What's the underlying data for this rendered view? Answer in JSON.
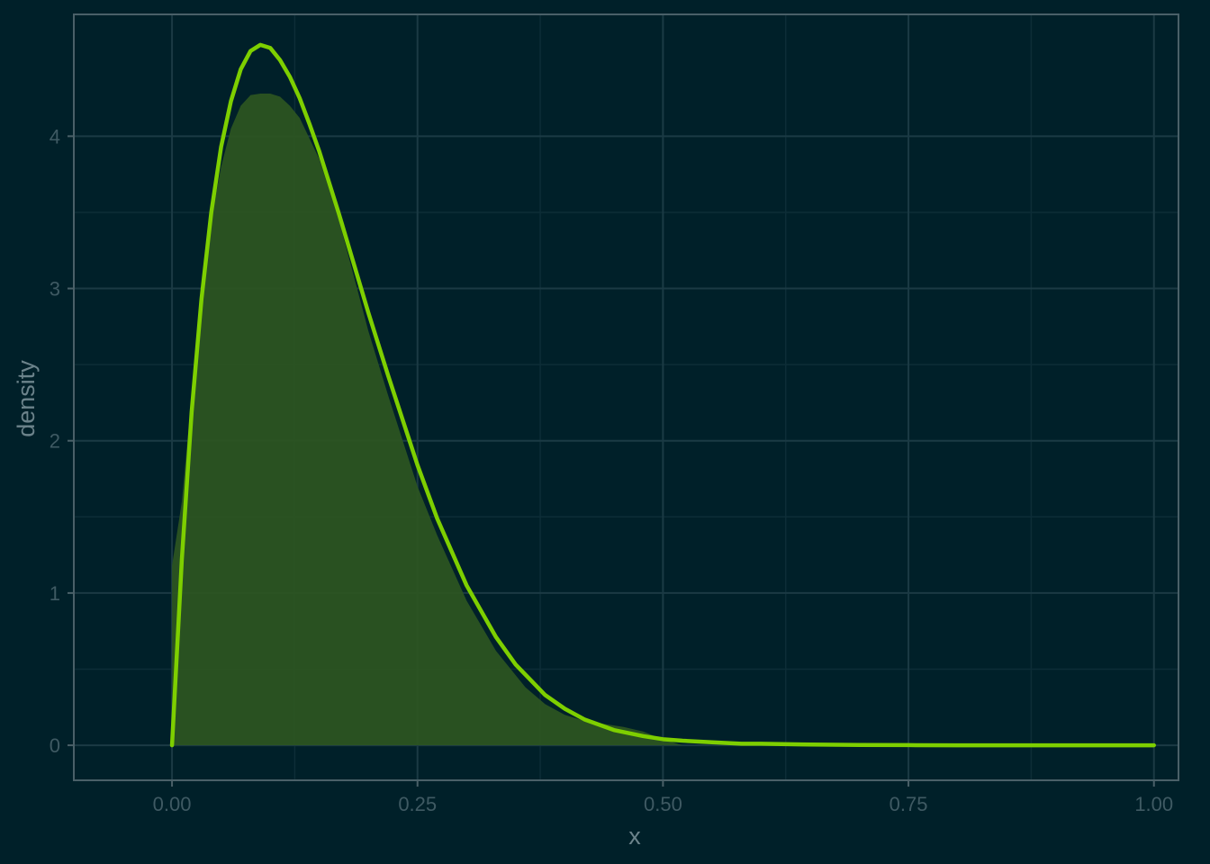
{
  "colors": {
    "background": "#002029",
    "panel_border": "#4a6068",
    "grid_major": "#1b3a44",
    "grid_minor": "#0d2d37",
    "line": "#7ecf00",
    "fill": "#2d5720",
    "tick_text": "#3f5a63",
    "axis_title": "#6c838b"
  },
  "chart_data": {
    "type": "area",
    "xlabel": "x",
    "ylabel": "density",
    "xlim": [
      -0.1,
      1.025
    ],
    "ylim": [
      -0.23,
      4.8
    ],
    "x_ticks": [
      0,
      0.25,
      0.5,
      0.75,
      1
    ],
    "x_tick_labels": [
      "0.00",
      "0.25",
      "0.50",
      "0.75",
      "1.00"
    ],
    "y_ticks": [
      0,
      1,
      2,
      3,
      4
    ],
    "y_tick_labels": [
      "0",
      "1",
      "2",
      "3",
      "4"
    ],
    "grid": true,
    "legend": "none",
    "series": [
      {
        "kind": "area",
        "x": [
          0.0,
          0.0,
          0.01,
          0.02,
          0.03,
          0.04,
          0.05,
          0.06,
          0.07,
          0.08,
          0.09,
          0.1,
          0.11,
          0.12,
          0.13,
          0.15,
          0.17,
          0.2,
          0.22,
          0.25,
          0.27,
          0.3,
          0.33,
          0.36,
          0.38,
          0.4,
          0.42,
          0.44,
          0.46,
          0.48,
          0.5,
          0.52
        ],
        "y": [
          0,
          1.18,
          1.6,
          2.3,
          2.95,
          3.45,
          3.8,
          4.05,
          4.2,
          4.27,
          4.28,
          4.28,
          4.26,
          4.2,
          4.12,
          3.85,
          3.45,
          2.72,
          2.3,
          1.7,
          1.38,
          0.95,
          0.62,
          0.38,
          0.27,
          0.2,
          0.16,
          0.14,
          0.12,
          0.09,
          0.04,
          0
        ]
      },
      {
        "kind": "line",
        "x": [
          0,
          0.01,
          0.02,
          0.03,
          0.04,
          0.05,
          0.06,
          0.07,
          0.08,
          0.09,
          0.1,
          0.11,
          0.12,
          0.13,
          0.14,
          0.15,
          0.17,
          0.2,
          0.22,
          0.25,
          0.27,
          0.3,
          0.33,
          0.35,
          0.38,
          0.4,
          0.42,
          0.45,
          0.48,
          0.5,
          0.52,
          0.55,
          0.58,
          0.6,
          0.65,
          0.7,
          0.75,
          0.8,
          0.9,
          1.0
        ],
        "y": [
          0,
          1.22,
          2.19,
          2.93,
          3.5,
          3.93,
          4.23,
          4.44,
          4.56,
          4.6,
          4.58,
          4.5,
          4.39,
          4.25,
          4.08,
          3.9,
          3.49,
          2.84,
          2.43,
          1.84,
          1.49,
          1.05,
          0.71,
          0.53,
          0.33,
          0.24,
          0.17,
          0.1,
          0.06,
          0.04,
          0.03,
          0.02,
          0.01,
          0.01,
          0.005,
          0.002,
          0.001,
          0,
          0,
          0
        ]
      }
    ]
  }
}
